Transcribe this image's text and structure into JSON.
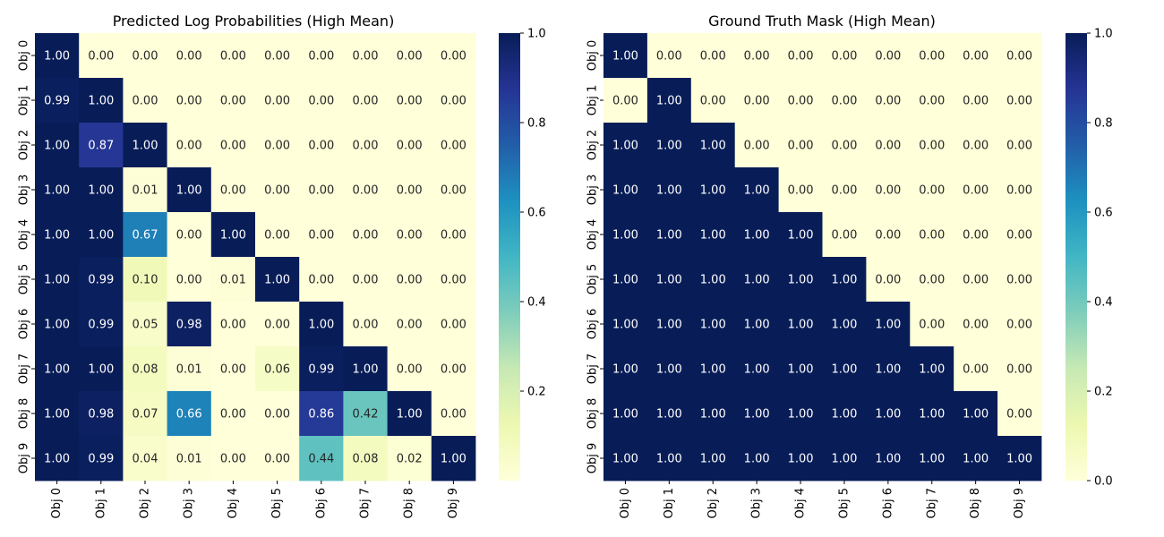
{
  "chart_data": [
    {
      "type": "heatmap",
      "title": "Predicted Log Probabilities (High Mean)",
      "x_labels": [
        "Obj 0",
        "Obj 1",
        "Obj 2",
        "Obj 3",
        "Obj 4",
        "Obj 5",
        "Obj 6",
        "Obj 7",
        "Obj 8",
        "Obj 9"
      ],
      "y_labels": [
        "Obj 0",
        "Obj 1",
        "Obj 2",
        "Obj 3",
        "Obj 4",
        "Obj 5",
        "Obj 6",
        "Obj 7",
        "Obj 8",
        "Obj 9"
      ],
      "values": [
        [
          1.0,
          0.0,
          0.0,
          0.0,
          0.0,
          0.0,
          0.0,
          0.0,
          0.0,
          0.0
        ],
        [
          0.99,
          1.0,
          0.0,
          0.0,
          0.0,
          0.0,
          0.0,
          0.0,
          0.0,
          0.0
        ],
        [
          1.0,
          0.87,
          1.0,
          0.0,
          0.0,
          0.0,
          0.0,
          0.0,
          0.0,
          0.0
        ],
        [
          1.0,
          1.0,
          0.01,
          1.0,
          0.0,
          0.0,
          0.0,
          0.0,
          0.0,
          0.0
        ],
        [
          1.0,
          1.0,
          0.67,
          0.0,
          1.0,
          0.0,
          0.0,
          0.0,
          0.0,
          0.0
        ],
        [
          1.0,
          0.99,
          0.1,
          0.0,
          0.01,
          1.0,
          0.0,
          0.0,
          0.0,
          0.0
        ],
        [
          1.0,
          0.99,
          0.05,
          0.98,
          0.0,
          0.0,
          1.0,
          0.0,
          0.0,
          0.0
        ],
        [
          1.0,
          1.0,
          0.08,
          0.01,
          0.0,
          0.06,
          0.99,
          1.0,
          0.0,
          0.0
        ],
        [
          1.0,
          0.98,
          0.07,
          0.66,
          0.0,
          0.0,
          0.86,
          0.42,
          1.0,
          0.0
        ],
        [
          1.0,
          0.99,
          0.04,
          0.01,
          0.0,
          0.0,
          0.44,
          0.08,
          0.02,
          1.0
        ]
      ],
      "colorbar": {
        "ticks": [
          "0.2",
          "0.4",
          "0.6",
          "0.8",
          "1.0"
        ],
        "tick_values": [
          0.2,
          0.4,
          0.6,
          0.8,
          1.0
        ],
        "range": [
          0.0,
          1.0
        ]
      },
      "colormap": "YlGnBu"
    },
    {
      "type": "heatmap",
      "title": "Ground Truth Mask (High Mean)",
      "x_labels": [
        "Obj 0",
        "Obj 1",
        "Obj 2",
        "Obj 3",
        "Obj 4",
        "Obj 5",
        "Obj 6",
        "Obj 7",
        "Obj 8",
        "Obj 9"
      ],
      "y_labels": [
        "Obj 0",
        "Obj 1",
        "Obj 2",
        "Obj 3",
        "Obj 4",
        "Obj 5",
        "Obj 6",
        "Obj 7",
        "Obj 8",
        "Obj 9"
      ],
      "values": [
        [
          1.0,
          0.0,
          0.0,
          0.0,
          0.0,
          0.0,
          0.0,
          0.0,
          0.0,
          0.0
        ],
        [
          0.0,
          1.0,
          0.0,
          0.0,
          0.0,
          0.0,
          0.0,
          0.0,
          0.0,
          0.0
        ],
        [
          1.0,
          1.0,
          1.0,
          0.0,
          0.0,
          0.0,
          0.0,
          0.0,
          0.0,
          0.0
        ],
        [
          1.0,
          1.0,
          1.0,
          1.0,
          0.0,
          0.0,
          0.0,
          0.0,
          0.0,
          0.0
        ],
        [
          1.0,
          1.0,
          1.0,
          1.0,
          1.0,
          0.0,
          0.0,
          0.0,
          0.0,
          0.0
        ],
        [
          1.0,
          1.0,
          1.0,
          1.0,
          1.0,
          1.0,
          0.0,
          0.0,
          0.0,
          0.0
        ],
        [
          1.0,
          1.0,
          1.0,
          1.0,
          1.0,
          1.0,
          1.0,
          0.0,
          0.0,
          0.0
        ],
        [
          1.0,
          1.0,
          1.0,
          1.0,
          1.0,
          1.0,
          1.0,
          1.0,
          0.0,
          0.0
        ],
        [
          1.0,
          1.0,
          1.0,
          1.0,
          1.0,
          1.0,
          1.0,
          1.0,
          1.0,
          0.0
        ],
        [
          1.0,
          1.0,
          1.0,
          1.0,
          1.0,
          1.0,
          1.0,
          1.0,
          1.0,
          1.0
        ]
      ],
      "colorbar": {
        "ticks": [
          "0.0",
          "0.2",
          "0.4",
          "0.6",
          "0.8",
          "1.0"
        ],
        "tick_values": [
          0.0,
          0.2,
          0.4,
          0.6,
          0.8,
          1.0
        ],
        "range": [
          0.0,
          1.0
        ]
      },
      "colormap": "YlGnBu"
    }
  ]
}
